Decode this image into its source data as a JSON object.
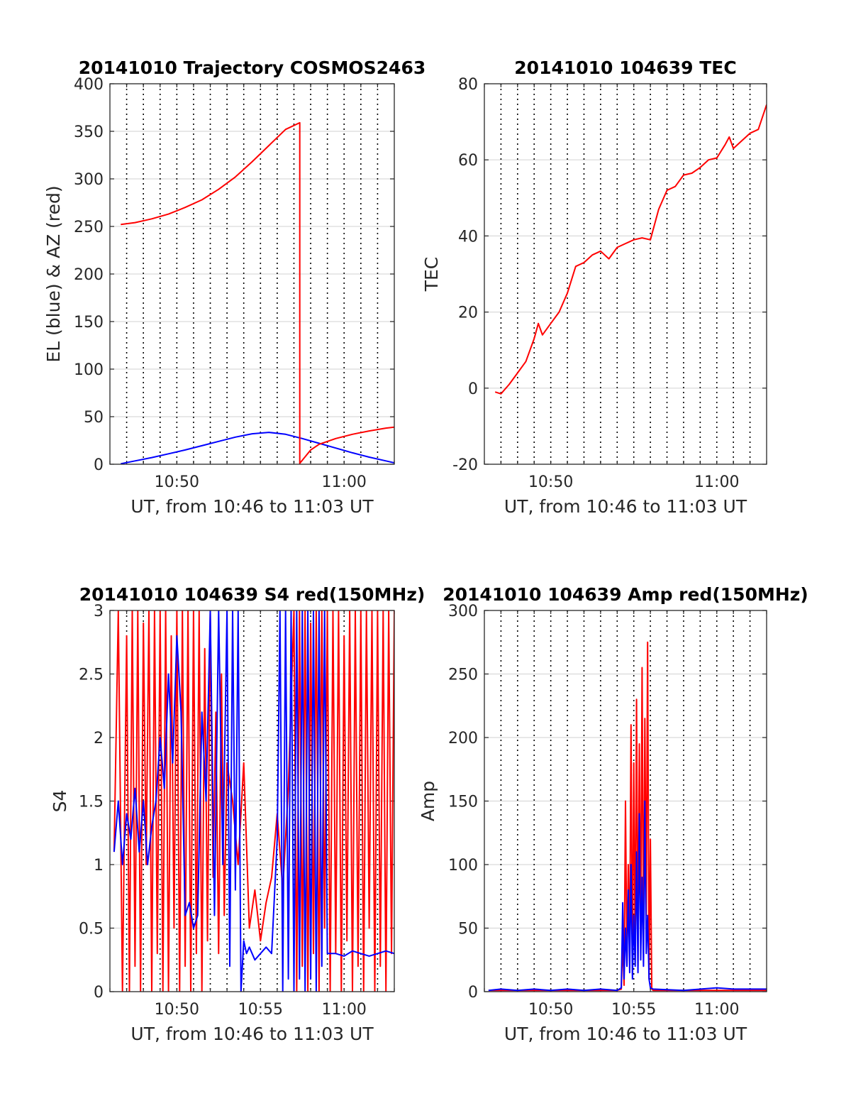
{
  "chart_data": [
    {
      "type": "line",
      "title": "20141010 Trajectory COSMOS2463",
      "xlabel": "UT, from 10:46 to 11:03 UT",
      "ylabel": "EL (blue) & AZ (red)",
      "xlim": [
        "10:46:00",
        "11:03:00"
      ],
      "ylim": [
        0,
        400
      ],
      "yticks": [
        "0",
        "50",
        "100",
        "150",
        "200",
        "250",
        "300",
        "350",
        "400"
      ],
      "xticks": [
        {
          "t": "10:50",
          "label": "10:50"
        },
        {
          "t": "11:00",
          "label": "11:00"
        }
      ],
      "grid": "dotted vertical lines every minute, light horizontal grid",
      "series": [
        {
          "color": "#0000ff",
          "x": [
            "10:46:39",
            "10:47:30",
            "10:48:30",
            "10:49:30",
            "10:50:30",
            "10:51:30",
            "10:52:30",
            "10:53:30",
            "10:54:30",
            "10:55:30",
            "10:56:30",
            "10:57:30",
            "10:58:30",
            "10:59:30",
            "11:00:30",
            "11:01:30",
            "11:02:30",
            "11:03:00"
          ],
          "values": [
            0.5,
            3.5,
            7,
            11,
            15,
            19.5,
            24,
            28.5,
            32,
            33.5,
            31.5,
            27,
            22,
            17,
            12,
            7.5,
            3.5,
            1.5
          ]
        },
        {
          "color": "#ff0000",
          "x": [
            "10:46:39",
            "10:47:30",
            "10:48:30",
            "10:49:30",
            "10:50:30",
            "10:51:30",
            "10:52:30",
            "10:53:30",
            "10:54:30",
            "10:55:30",
            "10:56:30",
            "10:57:21",
            "10:57:21",
            "10:58:00",
            "10:58:30",
            "10:59:30",
            "11:00:30",
            "11:01:30",
            "11:02:30",
            "11:03:00"
          ],
          "values": [
            252,
            254,
            258,
            263,
            270,
            278,
            289,
            302,
            318,
            335,
            352,
            359,
            1,
            15,
            21,
            27,
            31.5,
            35,
            38,
            39
          ]
        }
      ]
    },
    {
      "type": "line",
      "title": "20141010 104639 TEC",
      "xlabel": "UT, from 10:46 to 11:03 UT",
      "ylabel": "TEC",
      "xlim": [
        "10:46:00",
        "11:03:00"
      ],
      "ylim": [
        -20,
        80
      ],
      "yticks": [
        "-20",
        "0",
        "20",
        "40",
        "60",
        "80"
      ],
      "xticks": [
        {
          "t": "10:50",
          "label": "10:50"
        },
        {
          "t": "11:00",
          "label": "11:00"
        }
      ],
      "grid": "dotted vertical lines every minute, light horizontal grid",
      "series": [
        {
          "color": "#ff0000",
          "x": [
            "10:46:39",
            "10:47:00",
            "10:47:30",
            "10:48:00",
            "10:48:30",
            "10:49:00",
            "10:49:15",
            "10:49:30",
            "10:50:00",
            "10:50:30",
            "10:51:00",
            "10:51:30",
            "10:52:00",
            "10:52:30",
            "10:53:00",
            "10:53:30",
            "10:54:00",
            "10:54:30",
            "10:55:00",
            "10:55:30",
            "10:56:00",
            "10:56:30",
            "10:57:00",
            "10:57:30",
            "10:58:00",
            "10:58:30",
            "10:59:00",
            "10:59:30",
            "11:00:00",
            "11:00:30",
            "11:00:45",
            "11:01:00",
            "11:01:30",
            "11:02:00",
            "11:02:30",
            "11:03:00"
          ],
          "values": [
            -1,
            -1.5,
            1,
            4,
            7,
            13,
            17,
            14,
            17,
            20,
            25,
            32,
            33,
            35,
            36,
            34,
            37,
            38,
            39,
            39.5,
            39,
            47,
            52,
            53,
            56,
            56.5,
            58,
            60,
            60.5,
            64,
            66,
            63,
            65,
            67,
            68,
            74.5
          ]
        }
      ]
    },
    {
      "type": "line",
      "title": "20141010 104639 S4 red(150MHz)",
      "xlabel": "UT, from 10:46 to 11:03 UT",
      "ylabel": "S4",
      "xlim": [
        "10:46:00",
        "11:03:00"
      ],
      "ylim": [
        0,
        3
      ],
      "yticks": [
        "0",
        "0.5",
        "1",
        "1.5",
        "2",
        "2.5",
        "3"
      ],
      "xticks": [
        {
          "t": "10:50",
          "label": "10:50"
        },
        {
          "t": "10:55",
          "label": "10:55"
        },
        {
          "t": "11:00",
          "label": "11:00"
        }
      ],
      "grid": "dotted vertical lines every minute, light horizontal grid",
      "series": [
        {
          "color": "#ff0000",
          "x": [
            "10:46:15",
            "10:46:30",
            "10:46:45",
            "10:47:00",
            "10:47:10",
            "10:47:20",
            "10:47:30",
            "10:47:40",
            "10:47:50",
            "10:48:00",
            "10:48:10",
            "10:48:20",
            "10:48:30",
            "10:48:40",
            "10:48:50",
            "10:49:00",
            "10:49:10",
            "10:49:20",
            "10:49:30",
            "10:49:40",
            "10:49:50",
            "10:50:00",
            "10:50:10",
            "10:50:20",
            "10:50:30",
            "10:50:40",
            "10:50:50",
            "10:51:00",
            "10:51:10",
            "10:51:20",
            "10:51:30",
            "10:51:40",
            "10:51:50",
            "10:52:00",
            "10:52:10",
            "10:52:20",
            "10:52:30",
            "10:52:40",
            "10:52:50",
            "10:53:00",
            "10:53:20",
            "10:53:40",
            "10:54:00",
            "10:54:20",
            "10:54:40",
            "10:55:00",
            "10:55:20",
            "10:55:40",
            "10:56:00",
            "10:56:20",
            "10:56:40",
            "10:57:00",
            "10:57:10",
            "10:57:20",
            "10:57:30",
            "10:57:40",
            "10:57:50",
            "10:58:00",
            "10:58:10",
            "10:58:20",
            "10:58:30",
            "10:58:40",
            "10:58:50",
            "10:59:00",
            "10:59:10",
            "10:59:20",
            "10:59:30",
            "10:59:40",
            "10:59:50",
            "11:00:00",
            "11:00:10",
            "11:00:20",
            "11:00:30",
            "11:00:40",
            "11:00:50",
            "11:01:00",
            "11:01:10",
            "11:01:20",
            "11:01:30",
            "11:01:40",
            "11:01:50",
            "11:02:00",
            "11:02:10",
            "11:02:20",
            "11:02:30",
            "11:02:40",
            "11:02:50",
            "11:03:00"
          ],
          "values": [
            1.1,
            3,
            0,
            2.8,
            0,
            3,
            0.2,
            3,
            0,
            2.9,
            1.0,
            3,
            0,
            3,
            0.3,
            3,
            0,
            3,
            0,
            2.8,
            0.5,
            3,
            0,
            3,
            0.2,
            3,
            0,
            3,
            0.3,
            3,
            0,
            2.7,
            0.4,
            3,
            0.9,
            2.2,
            0.3,
            2.5,
            0.6,
            1.8,
            1.5,
            1.0,
            1.8,
            0.5,
            0.8,
            0.4,
            0.7,
            0.9,
            1.4,
            0.8,
            1.6,
            3,
            0,
            3,
            0.2,
            3,
            0,
            2.9,
            0.3,
            3,
            0,
            3,
            0.5,
            3,
            0,
            3,
            0.3,
            3,
            0,
            2.8,
            0.4,
            3,
            0,
            3,
            0.2,
            3,
            0,
            3,
            0.5,
            3,
            0,
            3,
            0.2,
            3,
            0,
            3,
            0.3,
            3
          ]
        },
        {
          "color": "#0000ff",
          "x": [
            "10:46:15",
            "10:46:30",
            "10:46:45",
            "10:47:00",
            "10:47:15",
            "10:47:30",
            "10:47:45",
            "10:48:00",
            "10:48:15",
            "10:48:30",
            "10:48:45",
            "10:49:00",
            "10:49:15",
            "10:49:30",
            "10:49:45",
            "10:50:00",
            "10:50:15",
            "10:50:30",
            "10:50:45",
            "10:51:00",
            "10:51:15",
            "10:51:30",
            "10:51:45",
            "10:52:00",
            "10:52:15",
            "10:52:30",
            "10:52:45",
            "10:53:00",
            "10:53:10",
            "10:53:20",
            "10:53:30",
            "10:53:40",
            "10:53:50",
            "10:54:00",
            "10:54:10",
            "10:54:20",
            "10:54:30",
            "10:54:40",
            "10:55:00",
            "10:55:20",
            "10:55:40",
            "10:56:00",
            "10:56:10",
            "10:56:20",
            "10:56:30",
            "10:56:40",
            "10:56:50",
            "10:57:00",
            "10:57:10",
            "10:57:20",
            "10:57:30",
            "10:57:40",
            "10:57:50",
            "10:58:00",
            "10:58:10",
            "10:58:20",
            "10:58:30",
            "10:58:40",
            "10:58:50",
            "10:59:00",
            "10:59:30",
            "11:00:00",
            "11:00:30",
            "11:01:00",
            "11:01:30",
            "11:02:00",
            "11:02:30",
            "11:03:00"
          ],
          "values": [
            1.1,
            1.5,
            1.0,
            1.4,
            1.2,
            1.6,
            1.1,
            1.5,
            1.0,
            1.3,
            1.5,
            2.0,
            1.6,
            2.5,
            1.8,
            2.8,
            2.2,
            0.6,
            0.7,
            0.5,
            0.6,
            2.2,
            1.5,
            3,
            0.6,
            3,
            1.0,
            3,
            0.2,
            3,
            0.8,
            3,
            0,
            0.4,
            0.3,
            0.35,
            0.3,
            0.25,
            0.3,
            0.35,
            0.3,
            1.2,
            3,
            0,
            3,
            0.1,
            3,
            0,
            3,
            0.1,
            3,
            0,
            3,
            0.1,
            3,
            0,
            3,
            0.2,
            3,
            0.3,
            0.3,
            0.28,
            0.32,
            0.3,
            0.28,
            0.3,
            0.32,
            0.3
          ]
        }
      ]
    },
    {
      "type": "line",
      "title": "20141010 104639 Amp red(150MHz)",
      "xlabel": "UT, from 10:46 to 11:03 UT",
      "ylabel": "Amp",
      "xlim": [
        "10:46:00",
        "11:03:00"
      ],
      "ylim": [
        0,
        300
      ],
      "yticks": [
        "0",
        "50",
        "100",
        "150",
        "200",
        "250",
        "300"
      ],
      "xticks": [
        {
          "t": "10:50",
          "label": "10:50"
        },
        {
          "t": "10:55",
          "label": "10:55"
        },
        {
          "t": "11:00",
          "label": "11:00"
        }
      ],
      "grid": "dotted vertical lines every minute, light horizontal grid",
      "series": [
        {
          "color": "#ff0000",
          "x": [
            "10:46:15",
            "10:50:00",
            "10:54:00",
            "10:54:15",
            "10:54:20",
            "10:54:25",
            "10:54:30",
            "10:54:35",
            "10:54:40",
            "10:54:45",
            "10:54:50",
            "10:54:55",
            "10:55:00",
            "10:55:05",
            "10:55:10",
            "10:55:15",
            "10:55:20",
            "10:55:25",
            "10:55:30",
            "10:55:35",
            "10:55:40",
            "10:55:45",
            "10:55:50",
            "10:55:55",
            "10:56:00",
            "10:56:05",
            "10:56:10",
            "10:56:30",
            "10:58:00",
            "11:00:00",
            "11:03:00"
          ],
          "values": [
            1,
            1,
            1,
            2,
            40,
            5,
            150,
            20,
            100,
            30,
            210,
            15,
            180,
            25,
            230,
            20,
            195,
            40,
            255,
            30,
            215,
            60,
            275,
            10,
            120,
            2,
            1,
            1,
            1,
            1,
            1
          ]
        },
        {
          "color": "#0000ff",
          "x": [
            "10:46:15",
            "10:47:00",
            "10:48:00",
            "10:49:00",
            "10:50:00",
            "10:51:00",
            "10:52:00",
            "10:53:00",
            "10:54:00",
            "10:54:15",
            "10:54:20",
            "10:54:25",
            "10:54:30",
            "10:54:35",
            "10:54:40",
            "10:54:45",
            "10:54:50",
            "10:54:55",
            "10:55:00",
            "10:55:05",
            "10:55:10",
            "10:55:15",
            "10:55:20",
            "10:55:25",
            "10:55:30",
            "10:55:35",
            "10:55:40",
            "10:55:45",
            "10:55:50",
            "10:55:55",
            "10:56:00",
            "10:56:10",
            "10:58:00",
            "11:00:00",
            "11:01:00",
            "11:02:00",
            "11:03:00"
          ],
          "values": [
            1,
            2,
            1,
            2,
            1,
            2,
            1,
            2,
            1,
            3,
            70,
            10,
            50,
            20,
            80,
            15,
            100,
            10,
            60,
            20,
            110,
            15,
            140,
            25,
            90,
            20,
            150,
            30,
            60,
            10,
            3,
            2,
            1,
            3,
            2,
            2,
            2
          ]
        }
      ]
    }
  ]
}
